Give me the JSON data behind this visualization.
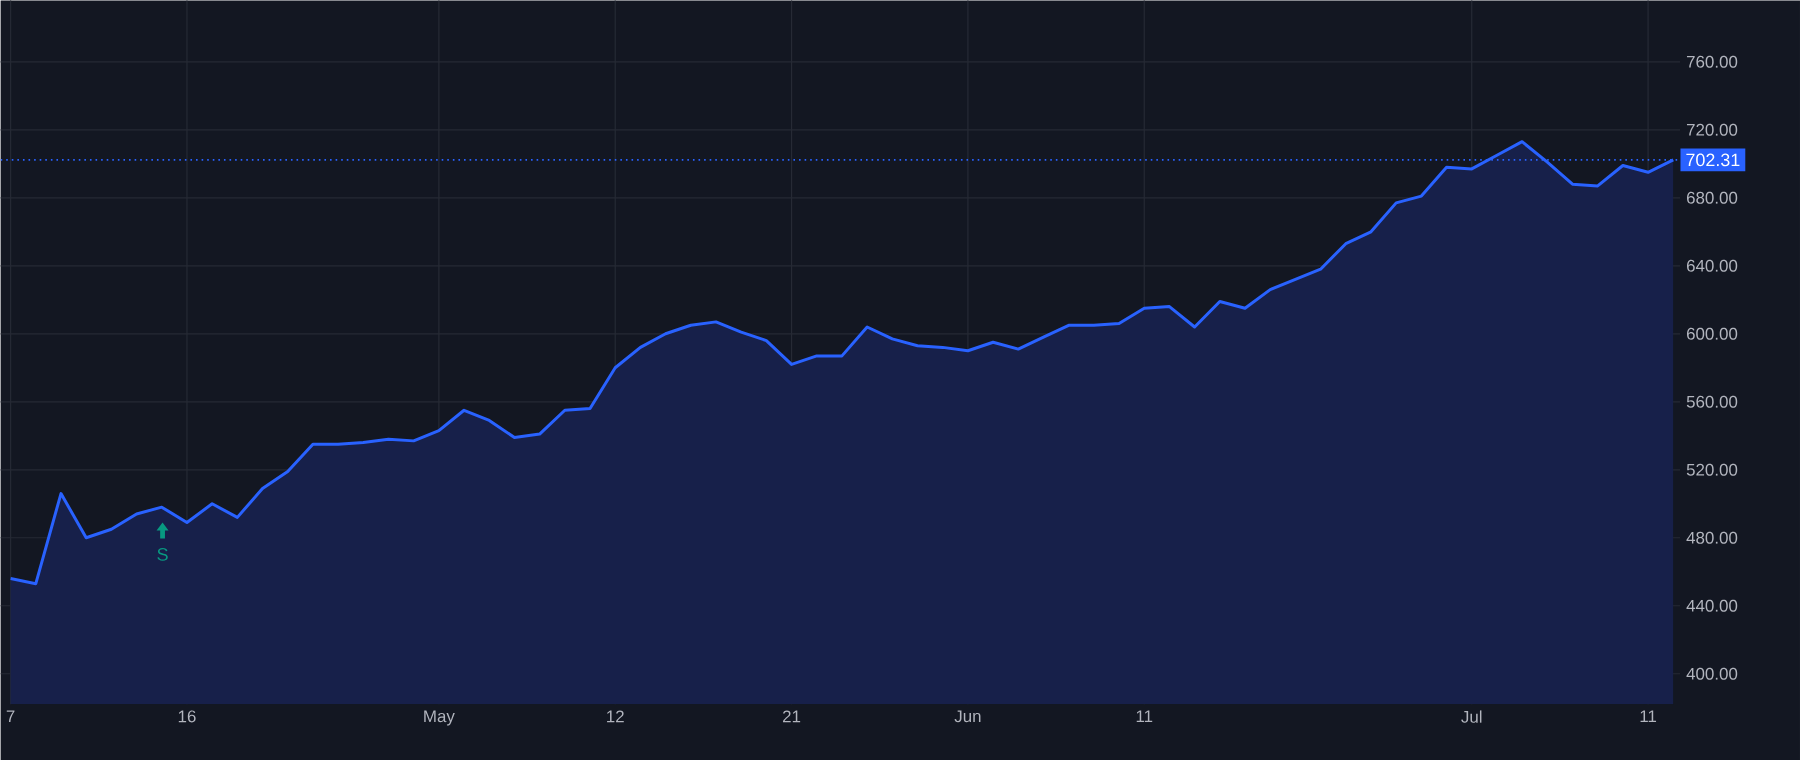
{
  "chart_data": {
    "type": "area",
    "categories": [
      "7",
      null,
      null,
      null,
      null,
      null,
      null,
      "16",
      null,
      null,
      null,
      null,
      null,
      null,
      null,
      null,
      null,
      "May",
      null,
      null,
      null,
      null,
      null,
      null,
      "12",
      null,
      null,
      null,
      null,
      null,
      null,
      "21",
      null,
      null,
      null,
      null,
      null,
      null,
      "Jun",
      null,
      null,
      null,
      null,
      null,
      null,
      "11",
      null,
      null,
      null,
      null,
      null,
      null,
      null,
      null,
      null,
      null,
      null,
      null,
      "Jul",
      null,
      null,
      null,
      null,
      null,
      null,
      "11",
      null
    ],
    "series": [
      {
        "color": "#2962ff",
        "values": [
          456,
          453,
          506,
          480,
          485,
          494,
          498,
          489,
          500,
          492,
          509,
          519,
          535,
          535,
          536,
          538,
          537,
          543,
          555,
          549,
          539,
          541,
          555,
          556,
          580,
          592,
          600,
          605,
          607,
          601,
          596,
          582,
          587,
          587,
          604,
          597,
          593,
          592,
          590,
          595,
          591,
          598,
          605,
          605,
          606,
          615,
          616,
          604,
          619,
          615,
          626,
          632,
          638,
          653,
          660,
          677,
          681,
          698,
          697,
          705,
          713,
          701,
          688,
          687,
          699,
          695,
          702.31
        ]
      }
    ],
    "ylim": [
      382,
      796
    ],
    "yticks": [
      {
        "value": 400,
        "label": "400.00"
      },
      {
        "value": 440,
        "label": "440.00"
      },
      {
        "value": 480,
        "label": "480.00"
      },
      {
        "value": 520,
        "label": "520.00"
      },
      {
        "value": 560,
        "label": "560.00"
      },
      {
        "value": 600,
        "label": "600.00"
      },
      {
        "value": 640,
        "label": "640.00"
      },
      {
        "value": 680,
        "label": "680.00"
      },
      {
        "value": 720,
        "label": "720.00"
      },
      {
        "value": 760,
        "label": "760.00"
      }
    ],
    "ref_lines": [
      {
        "axis": "y",
        "value": 702.31,
        "label": "702.31",
        "color": "#2962ff",
        "line_style": "dotted"
      }
    ],
    "annotations": [
      "S"
    ],
    "grid": true,
    "marker": "none",
    "line_style": "solid"
  }
}
